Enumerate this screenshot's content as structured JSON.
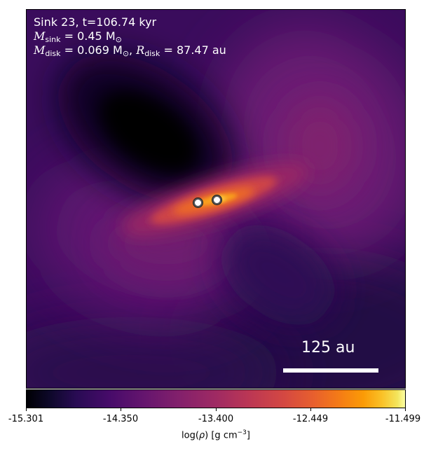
{
  "annotation": {
    "line1": "Sink 23, t=106.74 kyr",
    "msink_symbol": "M",
    "msink_sub": "sink",
    "msink_value": " = 0.45 M",
    "msink_unit_sub": "⊙",
    "mdisk_symbol": "M",
    "mdisk_sub": "disk",
    "mdisk_value": " = 0.069 M",
    "mdisk_unit_sub": "⊙",
    "mdisk_sep": ", ",
    "rdisk_symbol": "R",
    "rdisk_sub": "disk",
    "rdisk_value": " = 87.47 au"
  },
  "scale_bar": {
    "label": "125 au"
  },
  "colorbar": {
    "colormap": "inferno",
    "ticks": [
      "-15.301",
      "-14.350",
      "-13.400",
      "-12.449",
      "-11.499"
    ],
    "label_prefix": "log(",
    "label_rho": "ρ",
    "label_mid": ") [g cm",
    "label_exp": "−3",
    "label_suffix": "]"
  },
  "colors": {
    "background_low": "#000004",
    "background_mid": "#5a1570",
    "disk_hot": "#f8a51e",
    "sink_fill": "#ffffff",
    "sink_ring": "#555555"
  }
}
